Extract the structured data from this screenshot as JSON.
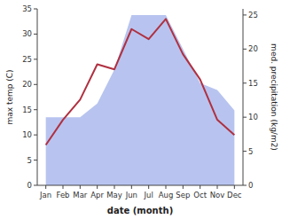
{
  "chart_data": {
    "type": "line",
    "categories": [
      "Jan",
      "Feb",
      "Mar",
      "Apr",
      "May",
      "Jun",
      "Jul",
      "Aug",
      "Sep",
      "Oct",
      "Nov",
      "Dec"
    ],
    "series": [
      {
        "type": "line",
        "color": "#b03040",
        "values": [
          8,
          13,
          17,
          24,
          23,
          31,
          29,
          33,
          26,
          21,
          13,
          10
        ]
      },
      {
        "type": "area",
        "color": "#b8c4ef",
        "axis": "y2",
        "values": [
          10,
          10,
          10,
          12,
          17,
          25,
          25,
          25,
          20,
          15,
          14,
          11
        ]
      }
    ],
    "xlabel": "date (month)",
    "ylabel": "max temp (C)",
    "y2label": "med. precipitation (kg/m2)",
    "ylim": [
      0,
      35
    ],
    "yticks": [
      0,
      5,
      10,
      15,
      20,
      25,
      30,
      35
    ],
    "y2lim": [
      0,
      25.9
    ],
    "y2ticks": [
      0,
      5,
      10,
      15,
      20,
      25
    ],
    "grid": false
  }
}
